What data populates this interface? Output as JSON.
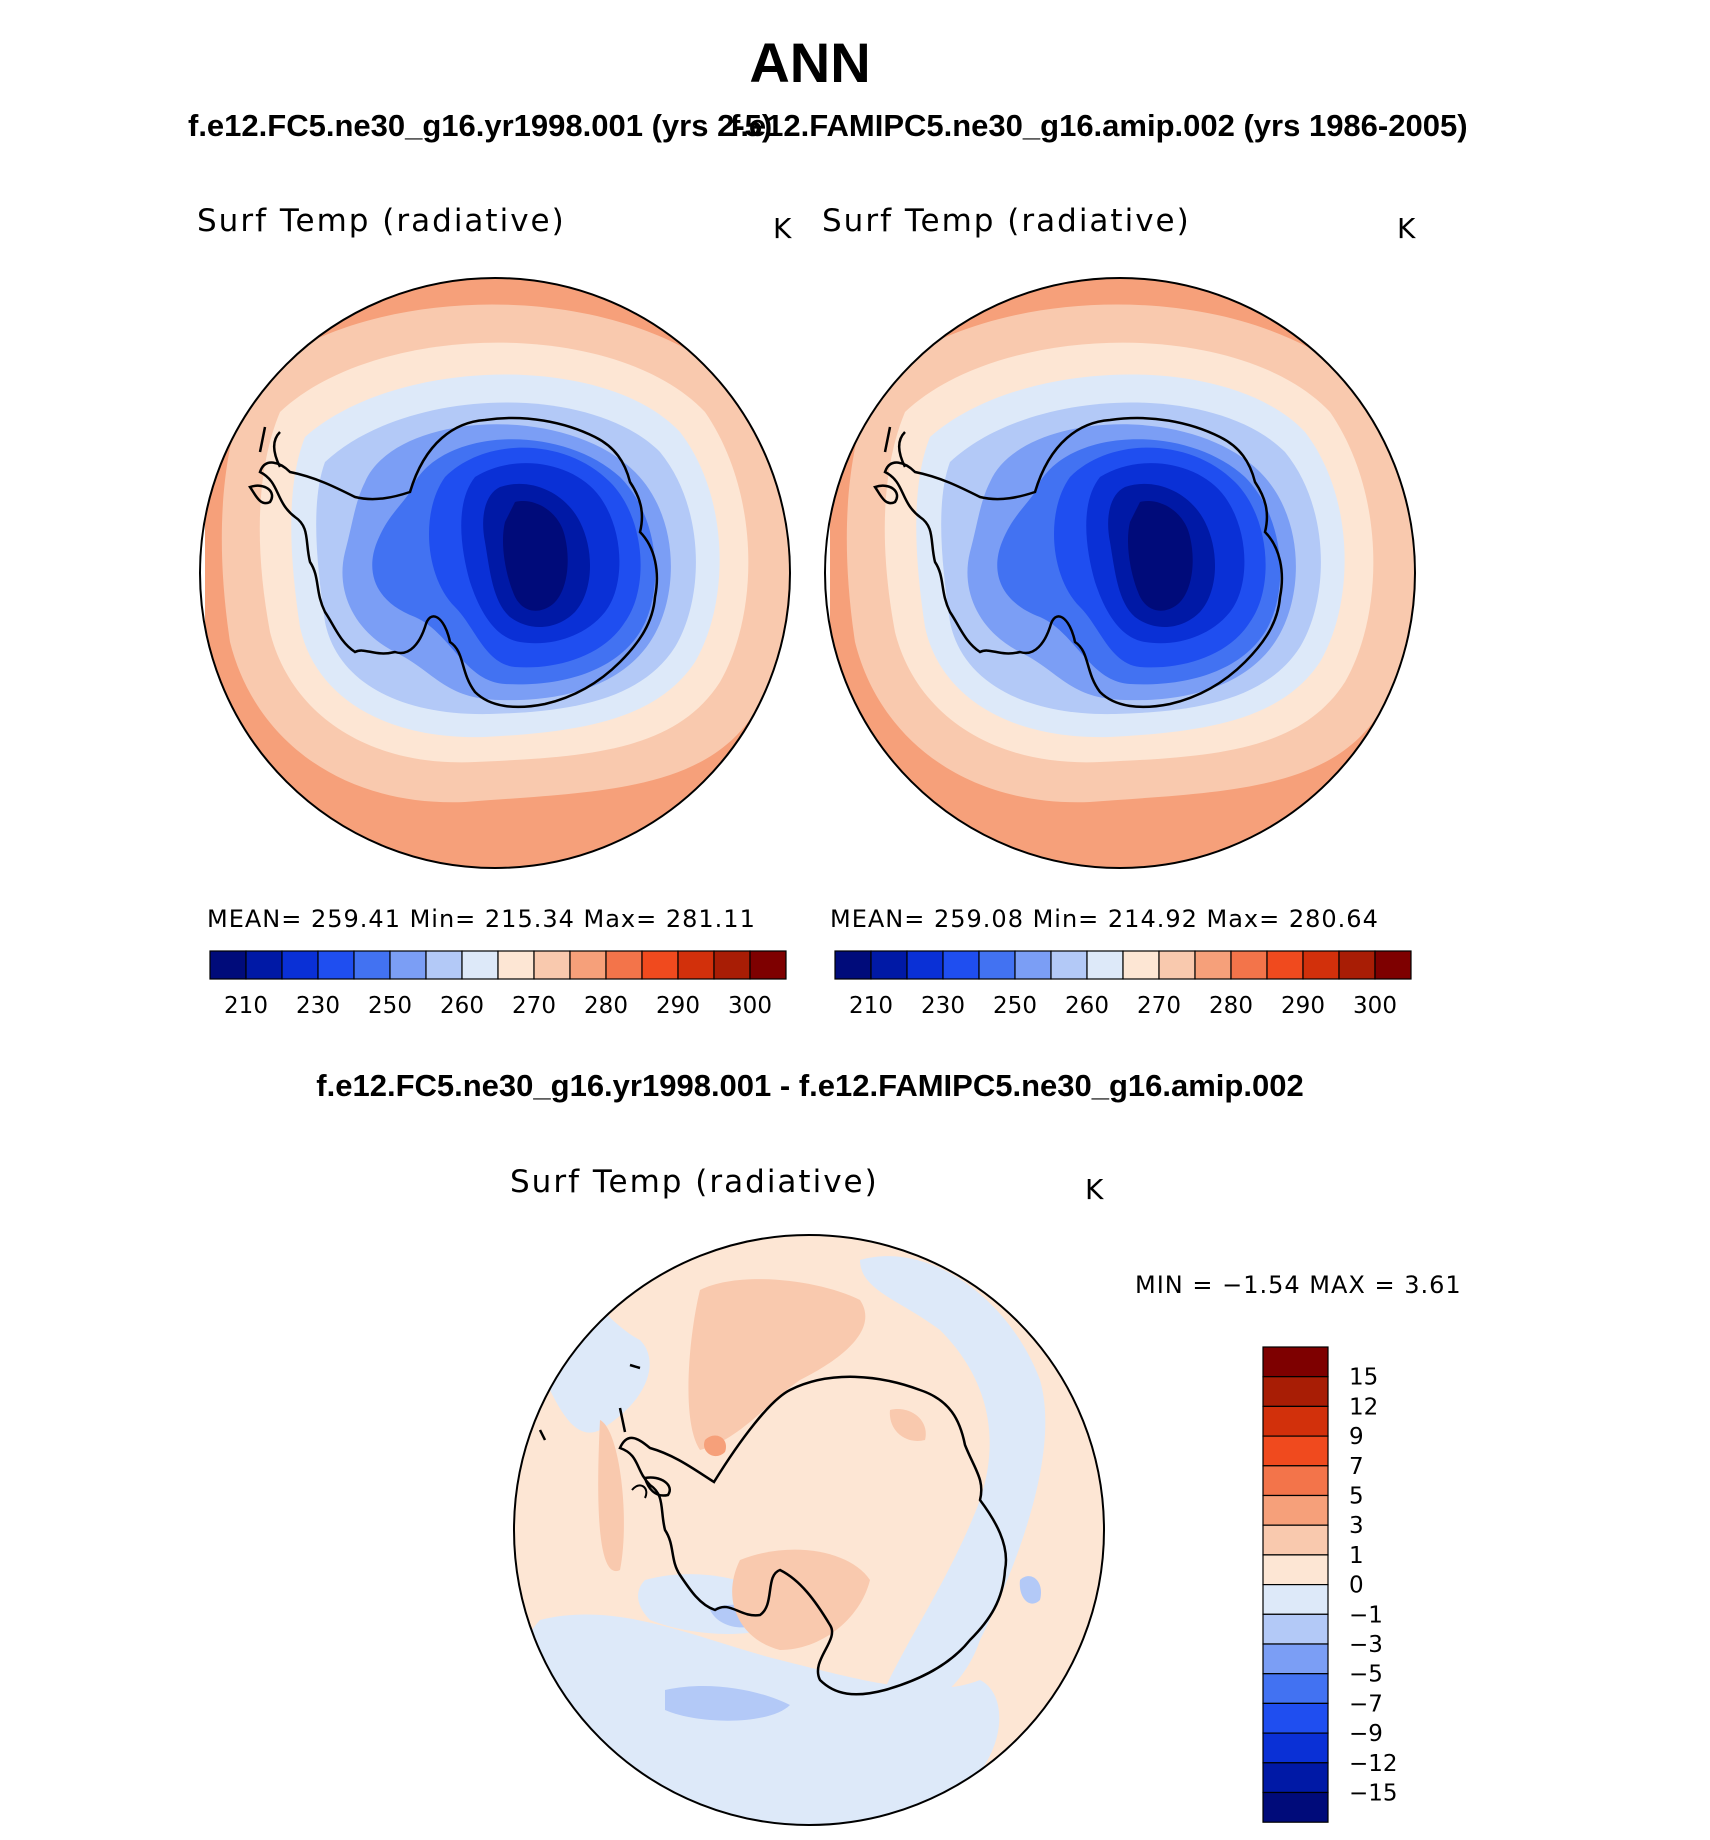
{
  "title": "ANN",
  "left_case": "f.e12.FC5.ne30_g16.yr1998.001 (yrs 2-5)",
  "right_case": "f.e12.FAMIPC5.ne30_g16.amip.002 (yrs 1986-2005)",
  "diff_title": "f.e12.FC5.ne30_g16.yr1998.001 - f.e12.FAMIPC5.ne30_g16.amip.002",
  "panels": {
    "left": {
      "variable": "Surf Temp (radiative)",
      "unit": "K",
      "stats": "MEAN= 259.41   Min= 215.34   Max= 281.11"
    },
    "right": {
      "variable": "Surf Temp (radiative)",
      "unit": "K",
      "stats": "MEAN= 259.08   Min= 214.92   Max= 280.64"
    },
    "diff": {
      "variable": "Surf Temp (radiative)",
      "unit": "K",
      "minmax": "MIN =   −1.54  MAX =    3.61"
    }
  },
  "abs_colorbar": {
    "colors": [
      "#000b7a",
      "#0019a6",
      "#0a30d6",
      "#1f4ef0",
      "#4272f2",
      "#7b9ef5",
      "#b3c9f7",
      "#dde9f9",
      "#fde6d4",
      "#f9c9ae",
      "#f6a07a",
      "#f3744a",
      "#f04a1e",
      "#d2300b",
      "#a81d05",
      "#7e0000"
    ],
    "tick_labels": [
      "210",
      "230",
      "250",
      "260",
      "270",
      "280",
      "290",
      "300"
    ]
  },
  "diff_colorbar": {
    "colors": [
      "#7e0000",
      "#a81d05",
      "#d2300b",
      "#f04a1e",
      "#f3744a",
      "#f6a07a",
      "#f9c9ae",
      "#fde6d4",
      "#dde9f9",
      "#b3c9f7",
      "#7b9ef5",
      "#4272f2",
      "#1f4ef0",
      "#0a30d6",
      "#0019a6",
      "#000b7a"
    ],
    "tick_labels": [
      "15",
      "12",
      "9",
      "7",
      "5",
      "3",
      "1",
      "0",
      "−1",
      "−3",
      "−5",
      "−7",
      "−9",
      "−12",
      "−15"
    ]
  },
  "map_colors": {
    "outer_ocean": "#f6a07a",
    "mid_ocean": "#f9c9ae",
    "near_ice": "#fde6d4",
    "sea_ice_1": "#dde9f9",
    "sea_ice_2": "#b3c9f7",
    "coast": "#7b9ef5",
    "ice_1": "#4272f2",
    "ice_2": "#1f4ef0",
    "ice_3": "#0a30d6",
    "ice_4": "#0019a6",
    "diff_pos": "#fde6d4",
    "diff_pos2": "#f9c9ae",
    "diff_pos3": "#f6a07a",
    "diff_neg": "#dde9f9",
    "diff_neg2": "#b3c9f7"
  }
}
